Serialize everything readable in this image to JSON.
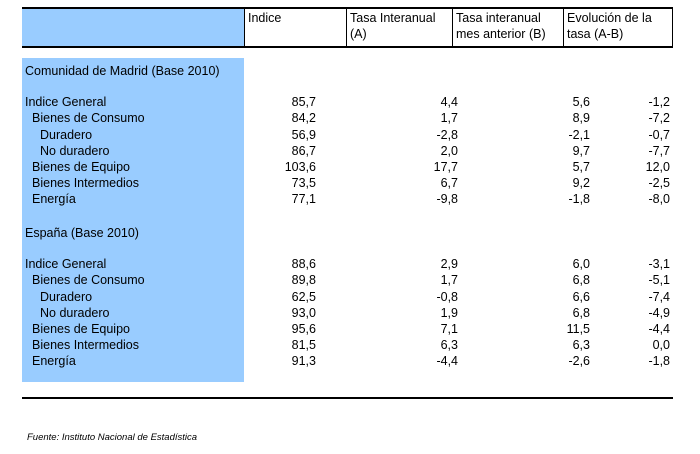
{
  "header": {
    "col_indice": "Indice",
    "col_a_line1": "Tasa Interanual",
    "col_a_line2": "(A)",
    "col_b_line1": "Tasa interanual",
    "col_b_line2": "mes anterior (B)",
    "col_c_line1": "Evolución de la",
    "col_c_line2": "tasa (A-B)"
  },
  "sections": [
    {
      "title": "Comunidad de Madrid (Base 2010)",
      "rows": [
        {
          "label": "Indice General",
          "v1": "85,7",
          "v2": "4,4",
          "v3": "5,6",
          "v4": "-1,2"
        },
        {
          "label": "Bienes de Consumo",
          "v1": "84,2",
          "v2": "1,7",
          "v3": "8,9",
          "v4": "-7,2"
        },
        {
          "label": "Duradero",
          "v1": "56,9",
          "v2": "-2,8",
          "v3": "-2,1",
          "v4": "-0,7"
        },
        {
          "label": "No duradero",
          "v1": "86,7",
          "v2": "2,0",
          "v3": "9,7",
          "v4": "-7,7"
        },
        {
          "label": "Bienes de Equipo",
          "v1": "103,6",
          "v2": "17,7",
          "v3": "5,7",
          "v4": "12,0"
        },
        {
          "label": "Bienes Intermedios",
          "v1": "73,5",
          "v2": "6,7",
          "v3": "9,2",
          "v4": "-2,5"
        },
        {
          "label": "Energía",
          "v1": "77,1",
          "v2": "-9,8",
          "v3": "-1,8",
          "v4": "-8,0"
        }
      ]
    },
    {
      "title": "España (Base 2010)",
      "rows": [
        {
          "label": "Indice General",
          "v1": "88,6",
          "v2": "2,9",
          "v3": "6,0",
          "v4": "-3,1"
        },
        {
          "label": "Bienes de Consumo",
          "v1": "89,8",
          "v2": "1,7",
          "v3": "6,8",
          "v4": "-5,1"
        },
        {
          "label": "Duradero",
          "v1": "62,5",
          "v2": "-0,8",
          "v3": "6,6",
          "v4": "-7,4"
        },
        {
          "label": "No duradero",
          "v1": "93,0",
          "v2": "1,9",
          "v3": "6,8",
          "v4": "-4,9"
        },
        {
          "label": "Bienes de Equipo",
          "v1": "95,6",
          "v2": "7,1",
          "v3": "11,5",
          "v4": "-4,4"
        },
        {
          "label": "Bienes Intermedios",
          "v1": "81,5",
          "v2": "6,3",
          "v3": "6,3",
          "v4": "0,0"
        },
        {
          "label": "Energía",
          "v1": "91,3",
          "v2": "-4,4",
          "v3": "-2,6",
          "v4": "-1,8"
        }
      ]
    }
  ],
  "source": "Fuente: Instituto Nacional de Estadística",
  "colors": {
    "label_band": "#99ccff"
  }
}
